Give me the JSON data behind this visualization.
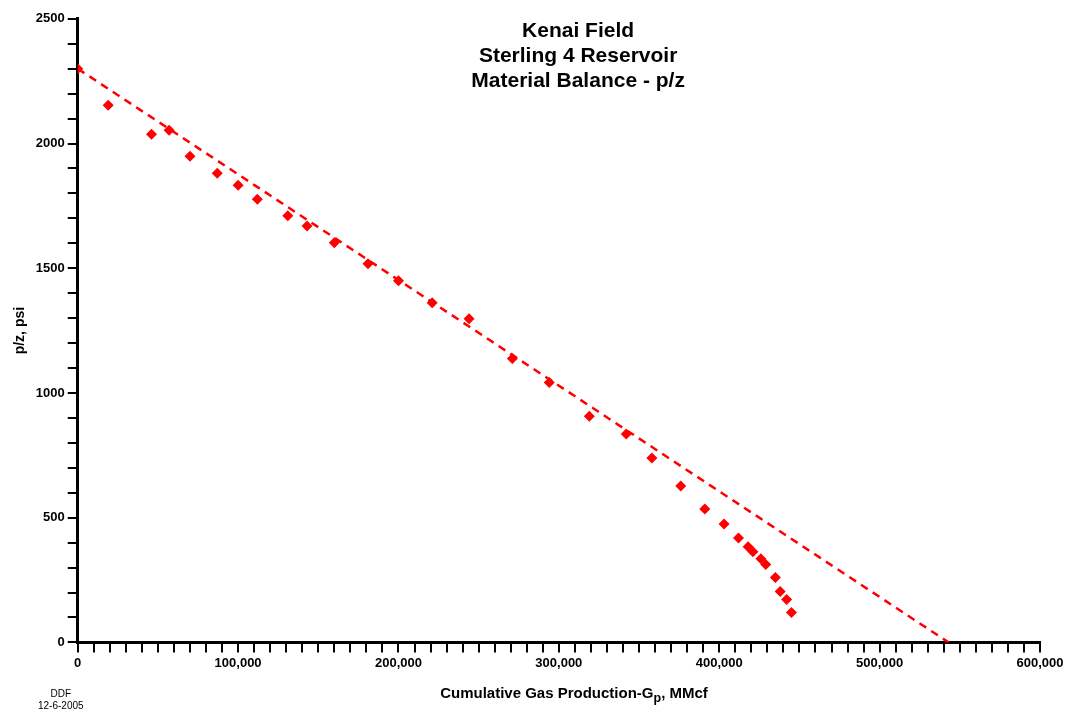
{
  "chart_data": {
    "type": "scatter",
    "title": "Kenai Field\nSterling 4 Reservoir\nMaterial Balance - p/z",
    "xlabel": "Cumulative Gas Production-G$_{p}$, MMcf",
    "ylabel": "p/z, psi",
    "annotations": [
      "DDF",
      "12-6-2005"
    ],
    "x": [
      0,
      19000,
      46000,
      57000,
      70000,
      87000,
      100000,
      112000,
      131000,
      143000,
      160000,
      181000,
      200000,
      221000,
      244000,
      271000,
      294000,
      319000,
      342000,
      358000,
      376000,
      391000,
      403000,
      412000,
      418000,
      421000,
      426000,
      429000,
      435000,
      438000,
      442000,
      445000
    ],
    "series": [
      {
        "type": "scatter",
        "color": "#ff0000",
        "marker": "diamond",
        "values": [
          2300,
          2153,
          2037,
          2053,
          1949,
          1881,
          1833,
          1777,
          1710,
          1669,
          1602,
          1518,
          1450,
          1362,
          1298,
          1138,
          1042,
          907,
          835,
          739,
          627,
          535,
          475,
          419,
          383,
          363,
          335,
          312,
          260,
          204,
          172,
          120
        ]
      },
      {
        "type": "line",
        "color": "#ff0000",
        "line_style": "dashed",
        "marker": "none",
        "x": [
          0,
          543000
        ],
        "values": [
          2300,
          0
        ]
      }
    ],
    "xlim": [
      0,
      600000
    ],
    "ylim": [
      0,
      2500
    ],
    "xticks": [
      0,
      {
        "value": 10000,
        "label": null
      },
      {
        "value": 20000,
        "label": null
      },
      {
        "value": 30000,
        "label": null
      },
      {
        "value": 40000,
        "label": null
      },
      {
        "value": 50000,
        "label": null
      },
      {
        "value": 60000,
        "label": null
      },
      {
        "value": 70000,
        "label": null
      },
      {
        "value": 80000,
        "label": null
      },
      {
        "value": 90000,
        "label": null
      },
      {
        "value": 100000,
        "label": "100,000"
      },
      {
        "value": 110000,
        "label": null
      },
      {
        "value": 120000,
        "label": null
      },
      {
        "value": 130000,
        "label": null
      },
      {
        "value": 140000,
        "label": null
      },
      {
        "value": 150000,
        "label": null
      },
      {
        "value": 160000,
        "label": null
      },
      {
        "value": 170000,
        "label": null
      },
      {
        "value": 180000,
        "label": null
      },
      {
        "value": 190000,
        "label": null
      },
      {
        "value": 200000,
        "label": "200,000"
      },
      {
        "value": 210000,
        "label": null
      },
      {
        "value": 220000,
        "label": null
      },
      {
        "value": 230000,
        "label": null
      },
      {
        "value": 240000,
        "label": null
      },
      {
        "value": 250000,
        "label": null
      },
      {
        "value": 260000,
        "label": null
      },
      {
        "value": 270000,
        "label": null
      },
      {
        "value": 280000,
        "label": null
      },
      {
        "value": 290000,
        "label": null
      },
      {
        "value": 300000,
        "label": "300,000"
      },
      {
        "value": 310000,
        "label": null
      },
      {
        "value": 320000,
        "label": null
      },
      {
        "value": 330000,
        "label": null
      },
      {
        "value": 340000,
        "label": null
      },
      {
        "value": 350000,
        "label": null
      },
      {
        "value": 360000,
        "label": null
      },
      {
        "value": 370000,
        "label": null
      },
      {
        "value": 380000,
        "label": null
      },
      {
        "value": 390000,
        "label": null
      },
      {
        "value": 400000,
        "label": "400,000"
      },
      {
        "value": 410000,
        "label": null
      },
      {
        "value": 420000,
        "label": null
      },
      {
        "value": 430000,
        "label": null
      },
      {
        "value": 440000,
        "label": null
      },
      {
        "value": 450000,
        "label": null
      },
      {
        "value": 460000,
        "label": null
      },
      {
        "value": 470000,
        "label": null
      },
      {
        "value": 480000,
        "label": null
      },
      {
        "value": 490000,
        "label": null
      },
      {
        "value": 500000,
        "label": "500,000"
      },
      {
        "value": 510000,
        "label": null
      },
      {
        "value": 520000,
        "label": null
      },
      {
        "value": 530000,
        "label": null
      },
      {
        "value": 540000,
        "label": null
      },
      {
        "value": 550000,
        "label": null
      },
      {
        "value": 560000,
        "label": null
      },
      {
        "value": 570000,
        "label": null
      },
      {
        "value": 580000,
        "label": null
      },
      {
        "value": 590000,
        "label": null
      },
      {
        "value": 600000,
        "label": "600,000"
      }
    ],
    "yticks": [
      0,
      {
        "value": 100,
        "label": null
      },
      {
        "value": 200,
        "label": null
      },
      {
        "value": 300,
        "label": null
      },
      {
        "value": 400,
        "label": null
      },
      500,
      {
        "value": 600,
        "label": null
      },
      {
        "value": 700,
        "label": null
      },
      {
        "value": 800,
        "label": null
      },
      {
        "value": 900,
        "label": null
      },
      1000,
      {
        "value": 1100,
        "label": null
      },
      {
        "value": 1200,
        "label": null
      },
      {
        "value": 1300,
        "label": null
      },
      {
        "value": 1400,
        "label": null
      },
      1500,
      {
        "value": 1600,
        "label": null
      },
      {
        "value": 1700,
        "label": null
      },
      {
        "value": 1800,
        "label": null
      },
      {
        "value": 1900,
        "label": null
      },
      2000,
      {
        "value": 2100,
        "label": null
      },
      {
        "value": 2200,
        "label": null
      },
      {
        "value": 2300,
        "label": null
      },
      {
        "value": 2400,
        "label": null
      },
      2500
    ],
    "grid": false,
    "legend": false
  }
}
